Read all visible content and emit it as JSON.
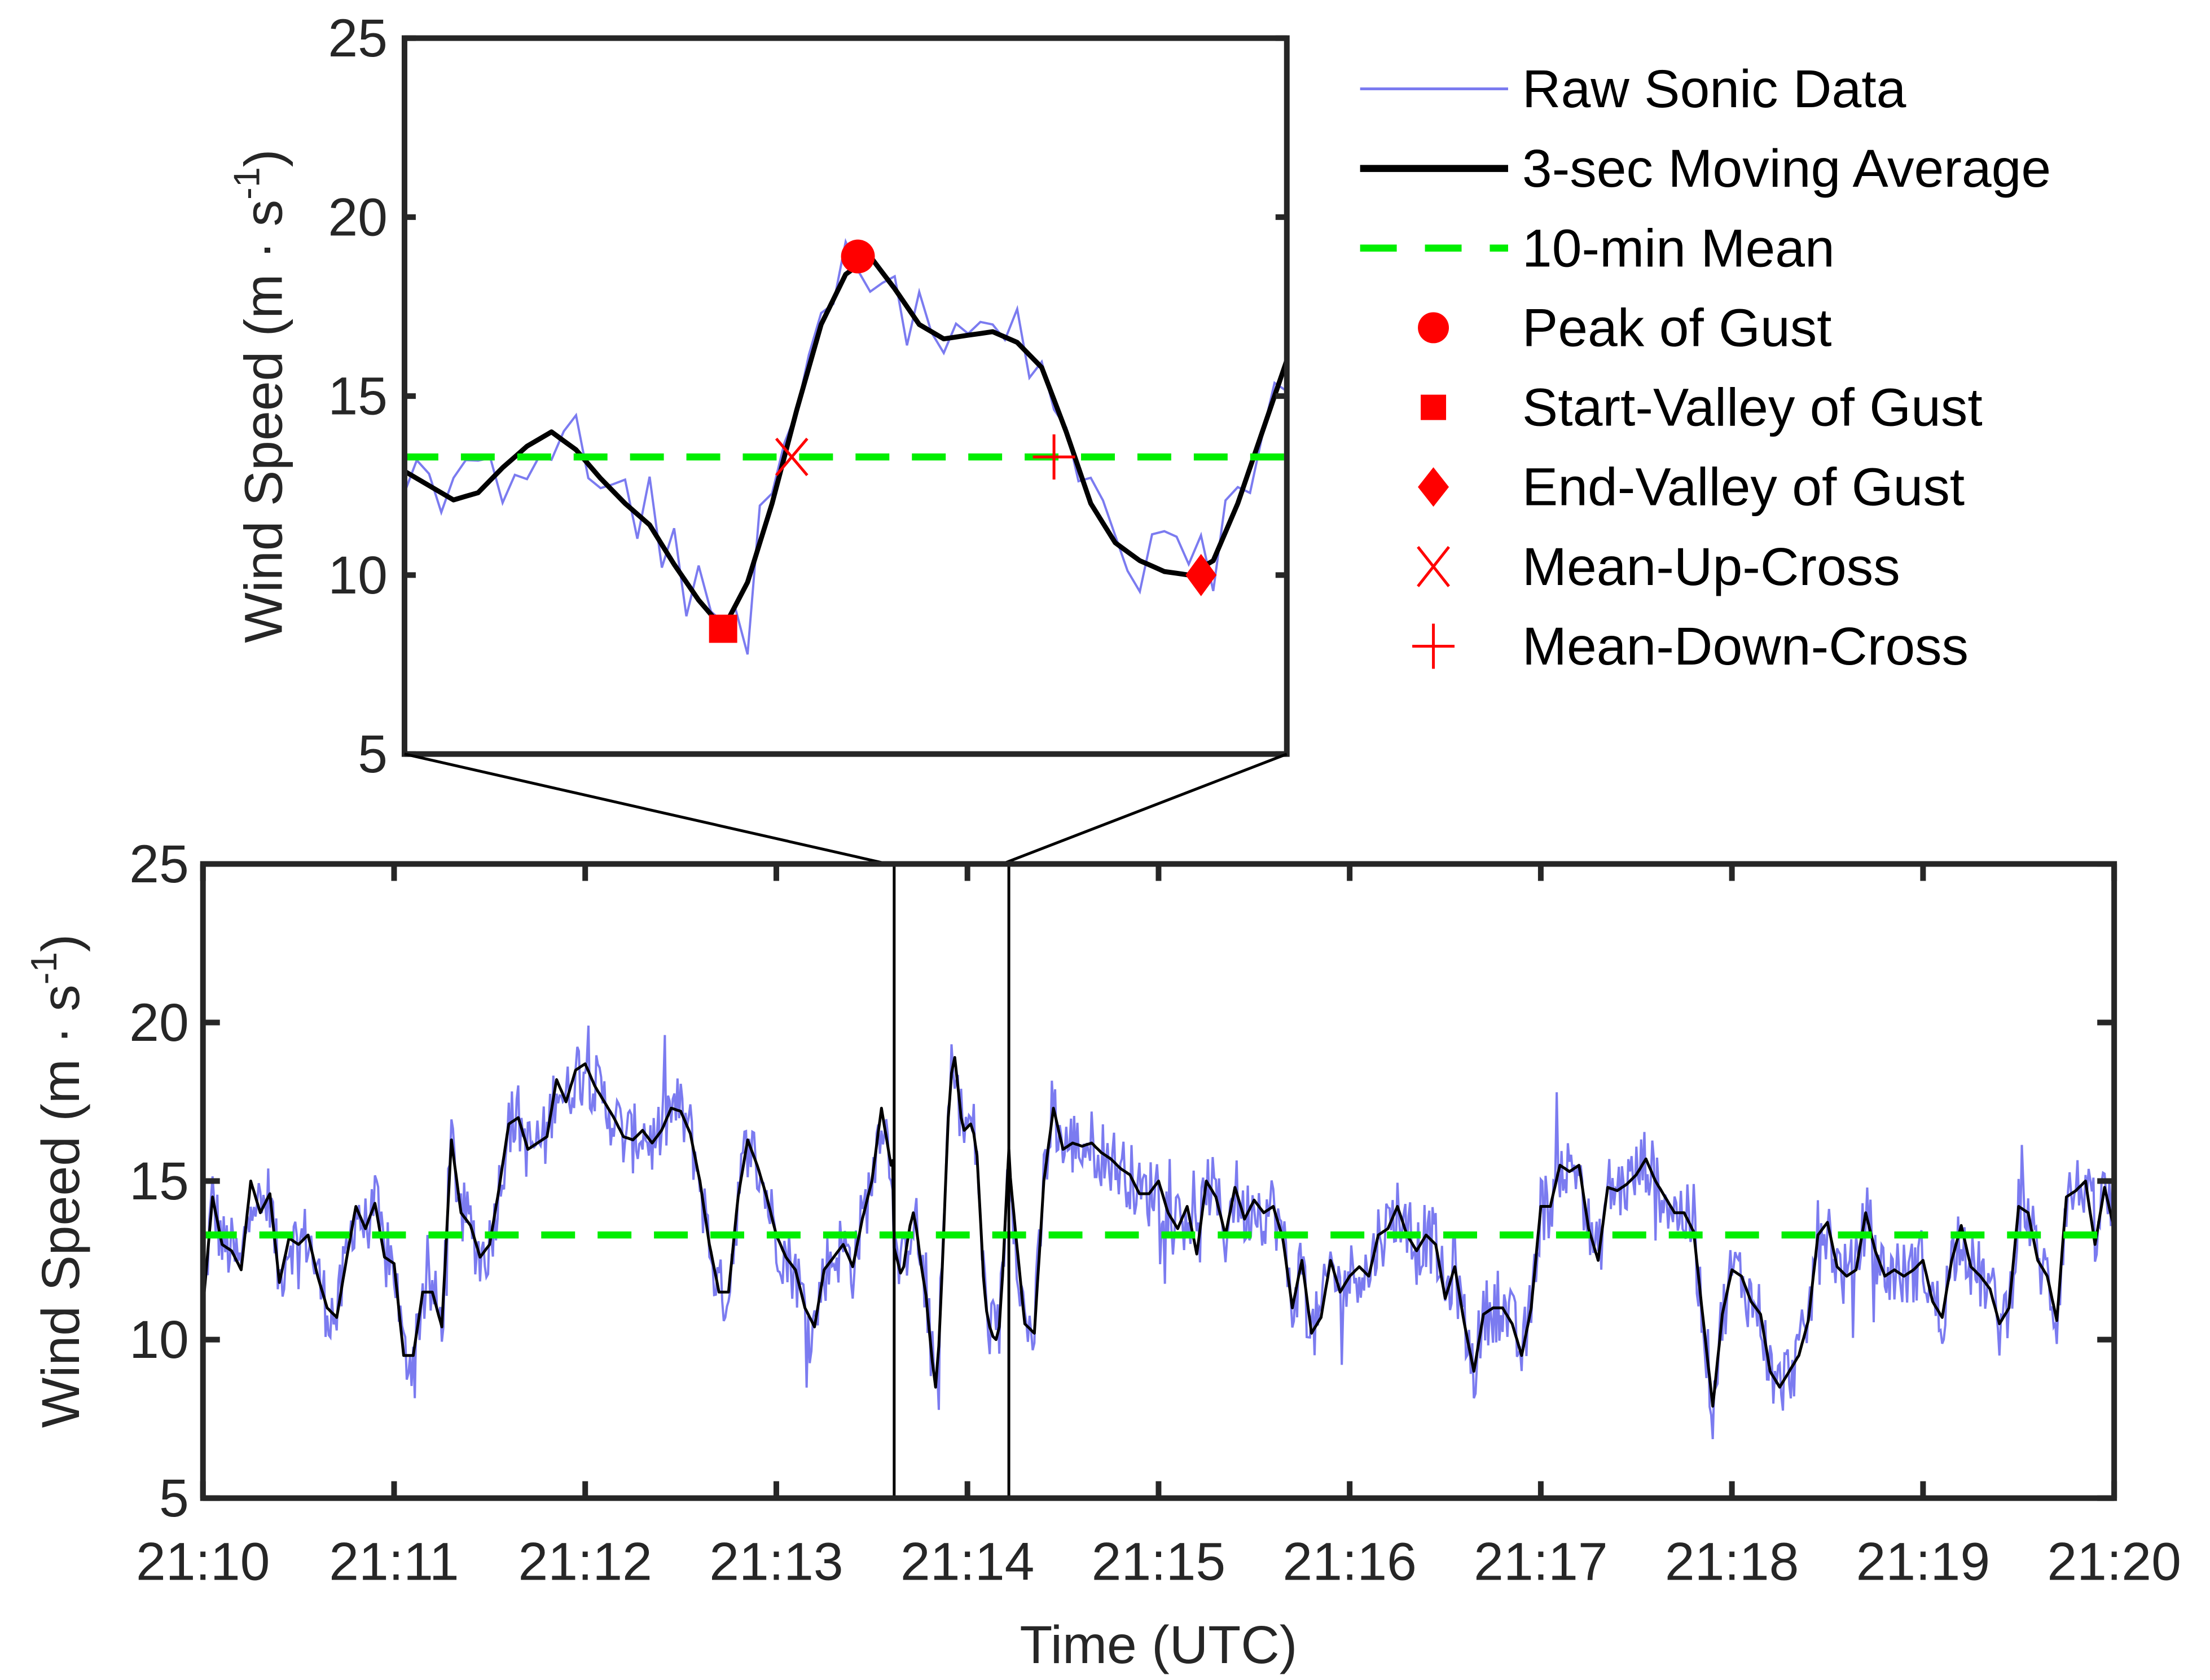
{
  "chart_data": [
    {
      "id": "zoom-panel",
      "type": "line",
      "title": "",
      "xlabel": "",
      "ylabel": "Wind Speed (m · s",
      "ylabel_sup": "-1",
      "ylabel_close": ")",
      "ylim": [
        5,
        25
      ],
      "yticks": [
        5,
        10,
        15,
        20,
        25
      ],
      "xlim_seconds": [
        217,
        253
      ],
      "mean": 13.3,
      "moving_average": {
        "t": [
          217,
          218,
          219,
          220,
          221,
          222,
          223,
          224,
          225,
          226,
          227,
          228,
          229,
          230,
          231,
          232,
          233,
          234,
          235,
          236,
          237,
          238,
          239,
          240,
          241,
          242,
          243,
          244,
          245,
          246,
          247,
          248,
          249,
          250,
          251,
          252,
          253
        ],
        "v": [
          12.9,
          12.5,
          12.1,
          12.3,
          13.0,
          13.6,
          14.0,
          13.5,
          12.7,
          12.0,
          11.4,
          10.3,
          9.3,
          8.5,
          9.8,
          12.0,
          14.6,
          17.0,
          18.4,
          18.9,
          18.0,
          17.0,
          16.6,
          16.7,
          16.8,
          16.5,
          15.8,
          14.0,
          12.0,
          10.9,
          10.4,
          10.1,
          10.0,
          10.4,
          12.0,
          14.0,
          16.0
        ]
      },
      "markers": {
        "peak": {
          "t": 235.5,
          "v": 18.9
        },
        "start_valley": {
          "t": 230.0,
          "v": 8.5
        },
        "end_valley": {
          "t": 249.5,
          "v": 10.0
        },
        "up_cross": {
          "t": 232.8,
          "v": 13.3
        },
        "down_cross": {
          "t": 243.5,
          "v": 13.3
        }
      }
    },
    {
      "id": "full-panel",
      "type": "line",
      "xlabel": "Time (UTC)",
      "ylabel": "Wind Speed (m · s",
      "ylabel_sup": "-1",
      "ylabel_close": ")",
      "ylim": [
        5,
        25
      ],
      "yticks": [
        5,
        10,
        15,
        20,
        25
      ],
      "xlim_seconds": [
        0,
        600
      ],
      "xticks_seconds": [
        0,
        60,
        120,
        180,
        240,
        300,
        360,
        420,
        480,
        540,
        600
      ],
      "xtick_labels": [
        "21:10",
        "21:11",
        "21:12",
        "21:13",
        "21:14",
        "21:15",
        "21:16",
        "21:17",
        "21:18",
        "21:19",
        "21:20"
      ],
      "mean": 13.3,
      "zoom_window_seconds": [
        217,
        253
      ],
      "moving_average": {
        "t": [
          0,
          3,
          6,
          9,
          12,
          15,
          18,
          21,
          24,
          27,
          30,
          33,
          36,
          39,
          42,
          45,
          48,
          51,
          54,
          57,
          60,
          63,
          66,
          69,
          72,
          75,
          78,
          81,
          84,
          87,
          90,
          93,
          96,
          99,
          102,
          105,
          108,
          111,
          114,
          117,
          120,
          123,
          126,
          129,
          132,
          135,
          138,
          141,
          144,
          147,
          150,
          153,
          156,
          159,
          162,
          165,
          168,
          171,
          174,
          177,
          180,
          183,
          186,
          189,
          192,
          195,
          198,
          201,
          204,
          207,
          210,
          213,
          216,
          219,
          222,
          225,
          228,
          231,
          234,
          237,
          240,
          243,
          246,
          249,
          252,
          255,
          258,
          261,
          264,
          267,
          270,
          273,
          276,
          279,
          282,
          285,
          288,
          291,
          294,
          297,
          300,
          303,
          306,
          309,
          312,
          315,
          318,
          321,
          324,
          327,
          330,
          333,
          336,
          339,
          342,
          345,
          348,
          351,
          354,
          357,
          360,
          363,
          366,
          369,
          372,
          375,
          378,
          381,
          384,
          387,
          390,
          393,
          396,
          399,
          402,
          405,
          408,
          411,
          414,
          417,
          420,
          423,
          426,
          429,
          432,
          435,
          438,
          441,
          444,
          447,
          450,
          453,
          456,
          459,
          462,
          465,
          468,
          471,
          474,
          477,
          480,
          483,
          486,
          489,
          492,
          495,
          498,
          501,
          504,
          507,
          510,
          513,
          516,
          519,
          522,
          525,
          528,
          531,
          534,
          537,
          540,
          543,
          546,
          549,
          552,
          555,
          558,
          561,
          564,
          567,
          570,
          573,
          576,
          579,
          582,
          585,
          588,
          591,
          594,
          597,
          600
        ],
        "v": [
          11.0,
          14.5,
          13.0,
          12.8,
          12.2,
          15.0,
          14.0,
          14.6,
          11.8,
          13.2,
          13.0,
          13.3,
          12.0,
          11.0,
          10.7,
          12.5,
          14.2,
          13.5,
          14.3,
          12.6,
          12.4,
          9.5,
          9.5,
          11.5,
          11.5,
          10.4,
          16.3,
          14.0,
          13.6,
          12.6,
          13.0,
          14.8,
          16.8,
          17.0,
          16.0,
          16.2,
          16.4,
          18.2,
          17.5,
          18.5,
          18.7,
          18.0,
          17.5,
          17.0,
          16.4,
          16.3,
          16.6,
          16.2,
          16.6,
          17.3,
          17.2,
          16.5,
          15.0,
          13.0,
          11.5,
          11.5,
          14.5,
          16.3,
          15.5,
          14.5,
          13.3,
          12.6,
          12.2,
          11.0,
          10.4,
          12.2,
          12.6,
          13.0,
          12.3,
          13.8,
          15.0,
          17.3,
          15.5,
          16.4,
          15.7,
          14.0,
          12.3,
          13.9,
          12.0,
          10.8,
          8.5,
          12.5,
          18.9,
          17.0,
          16.7,
          13.5,
          10.5,
          10.2,
          15.0,
          17.3,
          16.0,
          16.2,
          16.1,
          16.2,
          15.9,
          15.7,
          15.4,
          15.2,
          14.6,
          14.6,
          15.0,
          14.0,
          13.5,
          14.2,
          12.7,
          15.0,
          14.5,
          13.3,
          14.8,
          13.8,
          14.4,
          14.0,
          14.2,
          13.2,
          11.0,
          12.5,
          10.2,
          10.7,
          12.5,
          11.5,
          12.0,
          12.3,
          12.0,
          13.3,
          13.5,
          14.2,
          13.3,
          12.8,
          13.3,
          13.0,
          11.3,
          12.3,
          10.5,
          9.0,
          10.8,
          11.0,
          11.0,
          10.5,
          9.5,
          11.0,
          14.2,
          14.2,
          15.5,
          15.3,
          15.5,
          13.5,
          12.5,
          14.8,
          14.7,
          14.9,
          15.2,
          15.7,
          15.0,
          14.5,
          14.0,
          14.0,
          13.4,
          10.6,
          7.9,
          10.8,
          12.2,
          12.0,
          11.2,
          10.8,
          9.0,
          8.5,
          9.0,
          9.5,
          10.6,
          13.3,
          13.7,
          12.3,
          12.0,
          12.2,
          14.0,
          12.8,
          12.0,
          12.2,
          12.0,
          12.2,
          12.5,
          11.2,
          10.7,
          12.5,
          13.6,
          12.3,
          12.0,
          11.6,
          10.5,
          11.0,
          14.2,
          14.0,
          12.5,
          12.0,
          10.6,
          14.5,
          14.7,
          15.0,
          13.0,
          14.8,
          13.5
        ]
      }
    }
  ],
  "legend": [
    {
      "key": "raw",
      "label": "Raw Sonic Data",
      "color": "#7B7BF0",
      "style": "thin-line"
    },
    {
      "key": "ma",
      "label": "3-sec Moving Average",
      "color": "#000000",
      "style": "thick-line"
    },
    {
      "key": "mean",
      "label": "10-min Mean",
      "color": "#00EE00",
      "style": "dashed-line"
    },
    {
      "key": "peak",
      "label": "Peak of Gust",
      "color": "#FF0000",
      "style": "circle"
    },
    {
      "key": "start",
      "label": "Start-Valley of Gust",
      "color": "#FF0000",
      "style": "square"
    },
    {
      "key": "end",
      "label": "End-Valley of Gust",
      "color": "#FF0000",
      "style": "diamond"
    },
    {
      "key": "up",
      "label": "Mean-Up-Cross",
      "color": "#FF0000",
      "style": "x-mark"
    },
    {
      "key": "down",
      "label": "Mean-Down-Cross",
      "color": "#FF0000",
      "style": "plus-mark"
    }
  ],
  "colors": {
    "axis": "#262626",
    "raw": "#7B7BF0",
    "ma": "#000000",
    "mean": "#00EE00",
    "marker": "#FF0000"
  }
}
